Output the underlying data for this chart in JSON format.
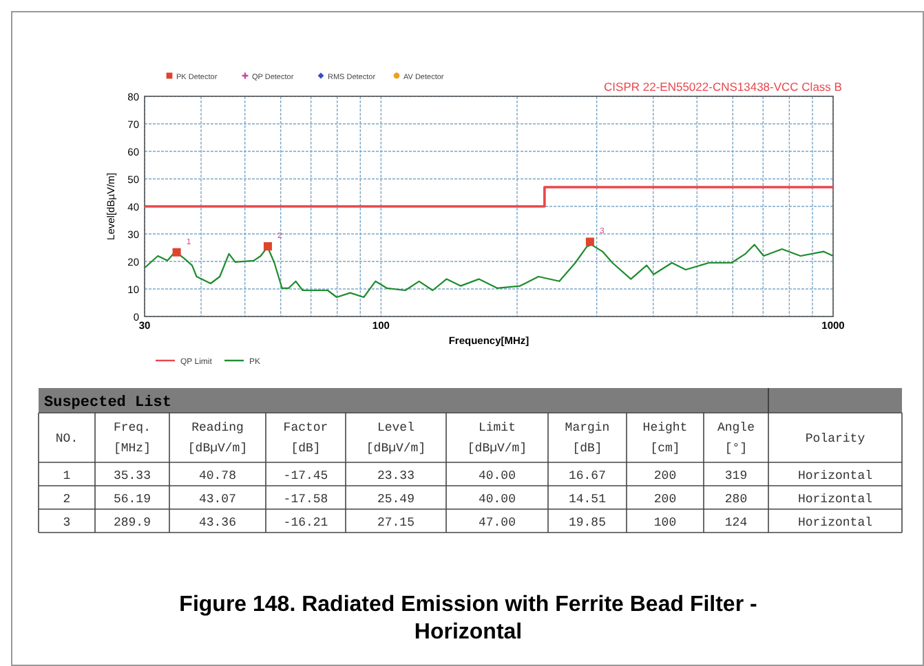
{
  "chart_data": [
    {
      "type": "line",
      "title": "CISPR 22-EN55022-CNS13438-VCC Class B",
      "xlabel": "Frequency[MHz]",
      "ylabel": "Level[dBµV/m]",
      "log": "x",
      "xlim": [
        30,
        1000
      ],
      "ylim": [
        0,
        80
      ],
      "xticks": [
        30,
        {
          "value": 40,
          "label": null
        },
        {
          "value": 50,
          "label": null
        },
        {
          "value": 60,
          "label": null
        },
        {
          "value": 70,
          "label": null
        },
        {
          "value": 80,
          "label": null
        },
        {
          "value": 90,
          "label": null
        },
        100,
        {
          "value": 200,
          "label": null
        },
        {
          "value": 300,
          "label": null
        },
        {
          "value": 400,
          "label": null
        },
        {
          "value": 500,
          "label": null
        },
        {
          "value": 600,
          "label": null
        },
        {
          "value": 700,
          "label": null
        },
        {
          "value": 800,
          "label": null
        },
        {
          "value": 900,
          "label": null
        },
        1000
      ],
      "yticks": [
        0,
        10,
        20,
        30,
        40,
        50,
        60,
        70,
        80
      ],
      "grid": true,
      "legend": "bottom left",
      "line_style": "solid",
      "series": [
        {
          "name": "QP Limit",
          "type": "step",
          "color": "#e8474c",
          "x": [
            30,
            230,
            1000
          ],
          "values": [
            40,
            47,
            47
          ]
        },
        {
          "name": "PK",
          "type": "line",
          "color": "#1e8c2e",
          "x": [
            30.07,
            32.1,
            33.7,
            35.1,
            36.7,
            38.2,
            39.1,
            42.0,
            44.0,
            46.1,
            47.6,
            52.3,
            54.2,
            56.1,
            58.1,
            60.4,
            62.5,
            64.8,
            67.1,
            71.0,
            76.2,
            79.8,
            85.5,
            91.6,
            97.2,
            103.0,
            113.2,
            121.4,
            130.1,
            139.6,
            150.0,
            164.6,
            180.7,
            203,
            223,
            248,
            269,
            285,
            292,
            309,
            325,
            357,
            387,
            401,
            440,
            472,
            531,
            596,
            640,
            670,
            702,
            771,
            847,
            952,
            1000
          ],
          "values": [
            17.8,
            22.0,
            20.3,
            23.6,
            21.1,
            18.6,
            14.5,
            12.0,
            14.5,
            22.8,
            19.8,
            20.3,
            22.0,
            25.3,
            19.5,
            10.3,
            10.3,
            12.8,
            9.5,
            9.5,
            9.5,
            7.0,
            8.6,
            7.0,
            12.8,
            10.3,
            9.5,
            12.8,
            9.5,
            13.6,
            11.1,
            13.6,
            10.3,
            11.1,
            14.5,
            12.8,
            19.5,
            25.3,
            26.1,
            23.6,
            19.5,
            13.6,
            18.6,
            15.3,
            19.5,
            17.0,
            19.5,
            19.5,
            22.8,
            26.1,
            22.0,
            24.5,
            22.0,
            23.6,
            22.0
          ]
        },
        {
          "name": "PK Detector",
          "type": "scatter",
          "marker": "square",
          "color": "#e0442c",
          "x": [
            35.33,
            56.19,
            289.9
          ],
          "values": [
            23.33,
            25.49,
            27.15
          ]
        },
        {
          "name": "QP Detector",
          "type": "scatter",
          "marker": "cross",
          "color": "#d0409a"
        },
        {
          "name": "RMS Detector",
          "type": "scatter",
          "marker": "diamond",
          "color": "#3050c0"
        },
        {
          "name": "AV Detector",
          "type": "scatter",
          "marker": "circle",
          "color": "#f0a020"
        }
      ],
      "annotations": [
        {
          "text": "1",
          "x": 35.33,
          "y": 23.33
        },
        {
          "text": "2",
          "x": 56.19,
          "y": 25.49
        },
        {
          "text": "3",
          "x": 289.9,
          "y": 27.15
        }
      ]
    },
    {
      "type": "other",
      "title": "Suspected List",
      "categories": [
        "NO.",
        "Freq.\n[MHz]",
        "Reading\n[dBµV/m]",
        "Factor\n[dB]",
        "Level\n[dBµV/m]",
        "Limit\n[dBµV/m]",
        "Margin\n[dB]",
        "Height\n[cm]",
        "Angle\n[°]",
        "Polarity"
      ],
      "cell_labels": [
        [
          "1",
          "35.33",
          "40.78",
          "-17.45",
          "23.33",
          "40.00",
          "16.67",
          "200",
          "319",
          "Horizontal"
        ],
        [
          "2",
          "56.19",
          "43.07",
          "-17.58",
          "25.49",
          "40.00",
          "14.51",
          "200",
          "280",
          "Horizontal"
        ],
        [
          "3",
          "289.9",
          "43.36",
          "-16.21",
          "27.15",
          "47.00",
          "19.85",
          "100",
          "124",
          "Horizontal"
        ]
      ],
      "annotations": [
        "Figure 148. Radiated Emission with Ferrite Bead Filter -\nHorizontal"
      ]
    }
  ]
}
